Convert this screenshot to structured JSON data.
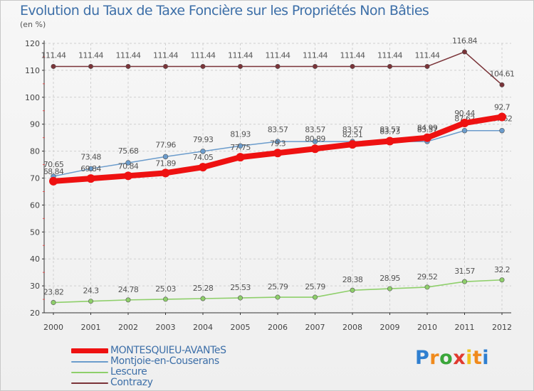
{
  "header": {
    "title": "Evolution du Taux de Taxe Foncière sur les Propriétés Non Bâties",
    "unit": "(en %)"
  },
  "logo": {
    "text": "Proxiti"
  },
  "chart_data": {
    "type": "line",
    "title": "Evolution du Taux de Taxe Foncière sur les Propriétés Non Bâties",
    "ylabel": "(en %)",
    "xlabel": "",
    "x": [
      2000,
      2001,
      2002,
      2003,
      2004,
      2005,
      2006,
      2007,
      2008,
      2009,
      2010,
      2011,
      2012
    ],
    "ylim": [
      20,
      120
    ],
    "yticks": [
      20,
      30,
      40,
      50,
      60,
      70,
      80,
      90,
      100,
      110,
      120
    ],
    "grid": true,
    "legend_position": "bottom-left",
    "series": [
      {
        "name": "Contrazy",
        "color": "#7a3338",
        "values": [
          111.44,
          111.44,
          111.44,
          111.44,
          111.44,
          111.44,
          111.44,
          111.44,
          111.44,
          111.44,
          111.44,
          116.84,
          104.61
        ],
        "labels": [
          "111.44",
          "111.44",
          "111.44",
          "111.44",
          "111.44",
          "111.44",
          "111.44",
          "111.44",
          "111.44",
          "111.44",
          "111.44",
          "116.84",
          "104.61"
        ]
      },
      {
        "name": "Montjoie-en-Couserans",
        "color": "#6b9ccc",
        "values": [
          70.65,
          73.48,
          75.68,
          77.96,
          79.93,
          81.93,
          83.57,
          83.57,
          83.57,
          83.57,
          83.57,
          87.62,
          87.62
        ],
        "labels": [
          "70.65",
          "73.48",
          "75.68",
          "77.96",
          "79.93",
          "81.93",
          "83.57",
          "83.57",
          "83.57",
          "83.57",
          "83.57",
          "87.62",
          "87.62"
        ]
      },
      {
        "name": "Lescure",
        "color": "#8ecf6a",
        "values": [
          23.82,
          24.3,
          24.78,
          25.03,
          25.28,
          25.53,
          25.79,
          25.79,
          28.38,
          28.95,
          29.52,
          31.57,
          32.2
        ],
        "labels": [
          "23.82",
          "24.3",
          "24.78",
          "25.03",
          "25.28",
          "25.53",
          "25.79",
          "25.79",
          "28.38",
          "28.95",
          "29.52",
          "31.57",
          "32.2"
        ]
      },
      {
        "name": "MONTESQUIEU-AVANTeS",
        "color": "#ee1111",
        "values": [
          68.84,
          69.84,
          70.84,
          71.89,
          74.05,
          77.75,
          79.3,
          80.89,
          82.51,
          83.73,
          84.99,
          90.44,
          92.7
        ],
        "labels": [
          "68.84",
          "69.84",
          "70.84",
          "71.89",
          "74.05",
          "77.75",
          "79.3",
          "80.89",
          "82.51",
          "83.73",
          "84.99",
          "90.44",
          "92.7"
        ]
      }
    ],
    "legend_order": [
      "MONTESQUIEU-AVANTeS",
      "Montjoie-en-Couserans",
      "Lescure",
      "Contrazy"
    ]
  }
}
